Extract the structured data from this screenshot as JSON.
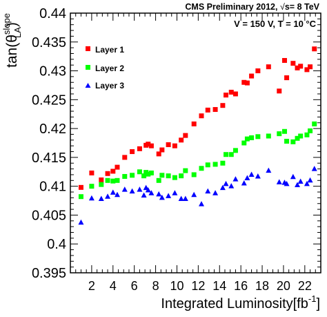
{
  "chart_data": {
    "type": "scatter",
    "header_left": "CMS Preliminary 2012, ",
    "header_sqrt": "√",
    "header_right": "s= 8 TeV",
    "annotation": "V = 150 V, T = 10 °C",
    "xlabel": "Integrated Luminosity[fb",
    "xlabel_sup": "-1",
    "xlabel_close": "]",
    "ylabel_main": "tan(θ",
    "ylabel_sup": "slope",
    "ylabel_sub": "LA",
    "ylabel_close": ")",
    "xlim": [
      0,
      23.5
    ],
    "ylim": [
      0.395,
      0.44
    ],
    "xticks": [
      2,
      4,
      6,
      8,
      10,
      12,
      14,
      16,
      18,
      20,
      22
    ],
    "yticks": [
      0.395,
      0.4,
      0.405,
      0.41,
      0.415,
      0.42,
      0.425,
      0.43,
      0.435,
      0.44
    ],
    "ytick_labels": [
      "0.395",
      "0.4",
      "0.405",
      "0.41",
      "0.415",
      "0.42",
      "0.425",
      "0.43",
      "0.435",
      "0.44"
    ],
    "grid": false,
    "legend_position": "top-left",
    "series": [
      {
        "name": "Layer 1",
        "marker": "square",
        "color": "#ff0000",
        "x": [
          1.0,
          2.0,
          2.9,
          3.5,
          4.0,
          4.4,
          5.1,
          5.8,
          6.5,
          7.1,
          7.3,
          7.6,
          8.3,
          8.6,
          9.2,
          9.8,
          10.4,
          10.8,
          11.6,
          12.3,
          12.9,
          13.6,
          14.3,
          14.6,
          15.1,
          15.5,
          16.3,
          16.6,
          17.0,
          17.6,
          18.6,
          19.6,
          20.1,
          20.3,
          20.9,
          21.3,
          21.6,
          22.2,
          22.5,
          22.9
        ],
        "y": [
          0.4098,
          0.4123,
          0.4111,
          0.4122,
          0.4126,
          0.4133,
          0.415,
          0.416,
          0.4165,
          0.4171,
          0.4173,
          0.417,
          0.4156,
          0.4163,
          0.4172,
          0.417,
          0.418,
          0.4188,
          0.4208,
          0.4222,
          0.4232,
          0.4233,
          0.424,
          0.4258,
          0.4263,
          0.426,
          0.428,
          0.4279,
          0.4291,
          0.43,
          0.4307,
          0.4265,
          0.4318,
          0.4288,
          0.4313,
          0.4305,
          0.4308,
          0.4302,
          0.4307,
          0.4338
        ]
      },
      {
        "name": "Layer 2",
        "marker": "square",
        "color": "#00ff00",
        "x": [
          1.0,
          2.0,
          2.9,
          3.5,
          4.0,
          4.4,
          5.1,
          5.8,
          6.5,
          6.9,
          7.1,
          7.3,
          7.6,
          8.3,
          8.6,
          9.2,
          9.8,
          10.4,
          10.8,
          11.6,
          12.3,
          12.9,
          13.6,
          14.3,
          14.6,
          15.1,
          15.5,
          16.3,
          16.6,
          17.0,
          17.6,
          18.6,
          19.6,
          20.1,
          20.3,
          20.9,
          21.3,
          21.6,
          22.2,
          22.5,
          22.9
        ],
        "y": [
          0.4082,
          0.41,
          0.4103,
          0.411,
          0.4109,
          0.411,
          0.4117,
          0.4119,
          0.4125,
          0.4118,
          0.4124,
          0.4121,
          0.4123,
          0.411,
          0.4119,
          0.4118,
          0.4115,
          0.4118,
          0.4127,
          0.412,
          0.4131,
          0.4137,
          0.4138,
          0.414,
          0.4155,
          0.4155,
          0.4162,
          0.4175,
          0.4182,
          0.4184,
          0.4186,
          0.4187,
          0.4191,
          0.4195,
          0.4178,
          0.4177,
          0.4183,
          0.4187,
          0.4189,
          0.4196,
          0.4208
        ]
      },
      {
        "name": "Layer 3",
        "marker": "triangle",
        "color": "#0000ff",
        "x": [
          1.0,
          2.0,
          2.9,
          3.5,
          4.0,
          4.4,
          5.1,
          5.8,
          6.5,
          6.9,
          7.1,
          7.3,
          7.6,
          8.3,
          8.6,
          9.2,
          9.8,
          10.4,
          10.8,
          11.6,
          12.3,
          12.9,
          13.6,
          14.3,
          14.6,
          15.1,
          15.5,
          16.3,
          16.6,
          17.0,
          17.6,
          18.6,
          19.6,
          20.1,
          20.3,
          20.9,
          21.3,
          21.6,
          22.2,
          22.5,
          22.9
        ],
        "y": [
          0.4037,
          0.4079,
          0.4078,
          0.4082,
          0.4089,
          0.4085,
          0.4094,
          0.4091,
          0.4094,
          0.4084,
          0.4097,
          0.4093,
          0.4088,
          0.4086,
          0.408,
          0.4083,
          0.4088,
          0.4078,
          0.4078,
          0.4085,
          0.4069,
          0.4091,
          0.4088,
          0.4097,
          0.4104,
          0.41,
          0.4112,
          0.4105,
          0.4114,
          0.412,
          0.4117,
          0.4127,
          0.4107,
          0.4106,
          0.4104,
          0.4116,
          0.4102,
          0.4108,
          0.4104,
          0.411,
          0.413
        ]
      }
    ]
  }
}
